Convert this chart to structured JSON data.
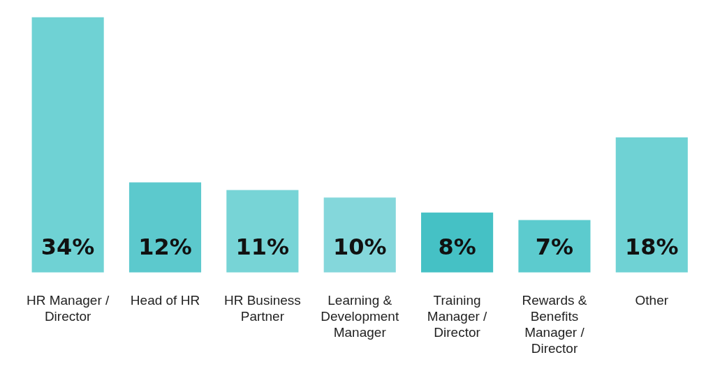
{
  "chart_data": {
    "type": "bar",
    "categories": [
      "HR Manager / Director",
      "Head of HR",
      "HR Business Partner",
      "Learning & Development Manager",
      "Training Manager / Director",
      "Rewards & Benefits Manager / Director",
      "Other"
    ],
    "values": [
      34,
      12,
      11,
      10,
      8,
      7,
      18
    ],
    "colors": [
      "#6fd2d4",
      "#5cc9cd",
      "#77d4d6",
      "#84d7db",
      "#45c1c5",
      "#5ccbce",
      "#6fd2d4"
    ],
    "value_labels": [
      "34%",
      "12%",
      "11%",
      "10%",
      "8%",
      "7%",
      "18%"
    ],
    "grid": false,
    "legend": false
  }
}
